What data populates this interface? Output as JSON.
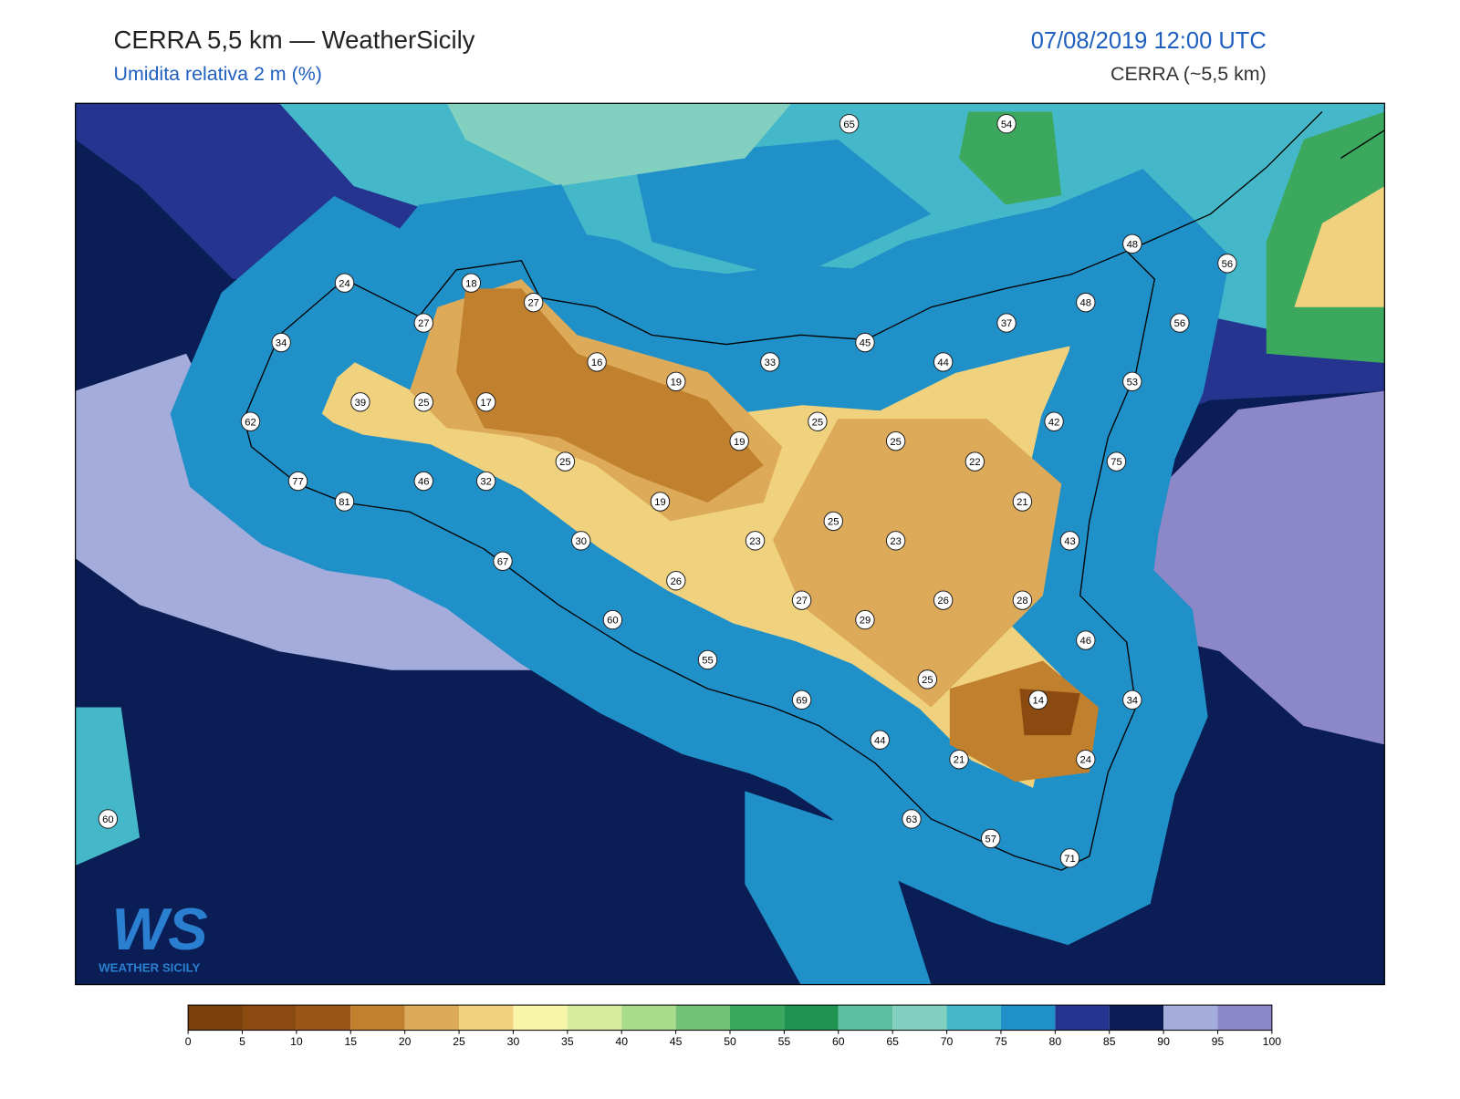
{
  "header": {
    "title": "CERRA 5,5 km — WeatherSicily",
    "subtitle": "Umidita relativa 2 m (%)",
    "datetime": "07/08/2019 12:00 UTC",
    "model": "CERRA (~5,5 km)"
  },
  "stations": [
    65,
    54,
    48,
    56,
    24,
    18,
    27,
    48,
    27,
    37,
    56,
    34,
    45,
    16,
    33,
    44,
    19,
    53,
    39,
    25,
    17,
    25,
    42,
    62,
    19,
    25,
    25,
    22,
    75,
    77,
    46,
    32,
    19,
    21,
    81,
    25,
    30,
    23,
    23,
    43,
    67,
    26,
    27,
    26,
    28,
    60,
    29,
    46,
    55,
    25,
    14,
    69,
    34,
    44,
    21,
    24,
    60,
    63,
    57,
    71
  ],
  "colorbar": {
    "ticks": [
      0,
      5,
      10,
      15,
      20,
      25,
      30,
      35,
      40,
      45,
      50,
      55,
      60,
      65,
      70,
      75,
      80,
      85,
      90,
      95,
      100
    ],
    "colors": [
      "#7a400b",
      "#8a4a10",
      "#9a5515",
      "#c0802e",
      "#dcaa58",
      "#f0d27e",
      "#f8f4a8",
      "#d8eca0",
      "#a8dc8c",
      "#74c278",
      "#3ca85e",
      "#1e9450",
      "#5cc0a0",
      "#82d0c0",
      "#44b8c8",
      "#2090c8",
      "#24348f",
      "#0a1e55",
      "#a4acdc",
      "#8c88c8"
    ]
  },
  "logo": {
    "mark": "WS",
    "text": "WEATHER SICILY"
  }
}
